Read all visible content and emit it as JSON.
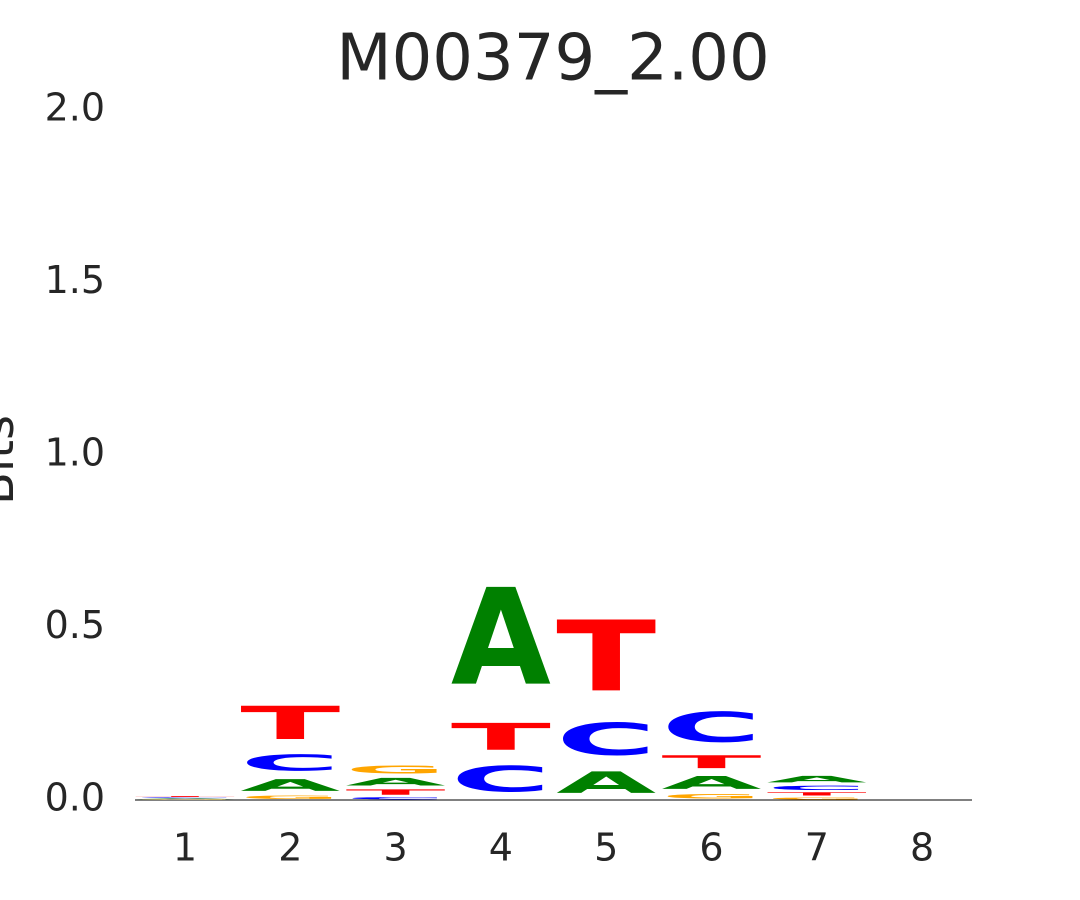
{
  "chart_data": {
    "type": "logo",
    "title": "M00379_2.00",
    "ylabel": "Bits",
    "categories": [
      "1",
      "2",
      "3",
      "4",
      "5",
      "6",
      "7",
      "8"
    ],
    "series": [
      {
        "name": "A",
        "color": "#008000",
        "values": [
          0.003,
          0.055,
          0.035,
          0.45,
          0.1,
          0.06,
          0.03,
          0
        ]
      },
      {
        "name": "C",
        "color": "#0000ff",
        "values": [
          0.003,
          0.075,
          0.01,
          0.12,
          0.15,
          0.14,
          0.02,
          0
        ]
      },
      {
        "name": "G",
        "color": "#ffa500",
        "values": [
          0.002,
          0.015,
          0.035,
          0,
          0,
          0.02,
          0.01,
          0
        ]
      },
      {
        "name": "T",
        "color": "#ff0000",
        "values": [
          0.004,
          0.155,
          0.025,
          0.125,
          0.33,
          0.06,
          0.015,
          0
        ]
      }
    ],
    "ylim": [
      0,
      2
    ],
    "yticks": [
      {
        "value": 0,
        "label": "0.0"
      },
      {
        "value": 0.5,
        "label": "0.5"
      },
      {
        "value": 1,
        "label": "1.0"
      },
      {
        "value": 1.5,
        "label": "1.5"
      },
      {
        "value": 2,
        "label": "2.0"
      }
    ]
  }
}
